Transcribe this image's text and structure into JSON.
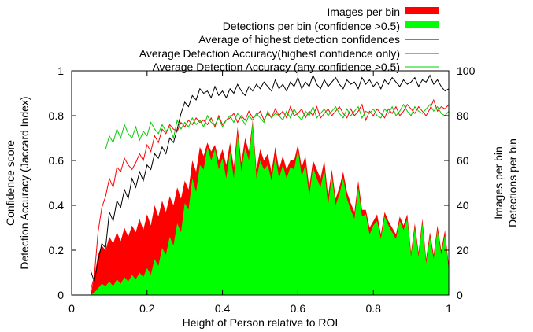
{
  "chart_data": {
    "type": "area",
    "xlabel": "Height of Person relative to ROI",
    "ylabel_left": [
      "Confidence score",
      "Detection Accuracy (Jaccard Index)"
    ],
    "ylabel_right": [
      "Images per bin",
      "Detections per bin"
    ],
    "xlim": [
      0,
      1
    ],
    "ylim_left": [
      0,
      1
    ],
    "ylim_right": [
      0,
      100
    ],
    "x_ticks": [
      "0",
      "0.2",
      "0.4",
      "0.6",
      "0.8",
      "1"
    ],
    "y_left_ticks": [
      "0",
      "0.2",
      "0.4",
      "0.6",
      "0.8",
      "1"
    ],
    "y_right_ticks": [
      "0",
      "20",
      "40",
      "60",
      "80",
      "100"
    ],
    "legend_position": "top-right",
    "series": [
      {
        "name": "Images per bin",
        "axis": "right",
        "style": "filled",
        "color": "#ff0000",
        "x": [
          0.05,
          0.06,
          0.07,
          0.08,
          0.09,
          0.1,
          0.11,
          0.12,
          0.13,
          0.14,
          0.15,
          0.16,
          0.17,
          0.18,
          0.19,
          0.2,
          0.21,
          0.22,
          0.23,
          0.24,
          0.25,
          0.26,
          0.27,
          0.28,
          0.29,
          0.3,
          0.31,
          0.32,
          0.33,
          0.34,
          0.35,
          0.36,
          0.37,
          0.38,
          0.39,
          0.4,
          0.41,
          0.42,
          0.43,
          0.44,
          0.45,
          0.46,
          0.47,
          0.48,
          0.49,
          0.5,
          0.51,
          0.52,
          0.53,
          0.54,
          0.55,
          0.56,
          0.57,
          0.58,
          0.59,
          0.6,
          0.61,
          0.62,
          0.63,
          0.64,
          0.65,
          0.66,
          0.67,
          0.68,
          0.69,
          0.7,
          0.71,
          0.72,
          0.73,
          0.74,
          0.75,
          0.76,
          0.77,
          0.78,
          0.79,
          0.8,
          0.81,
          0.82,
          0.83,
          0.84,
          0.85,
          0.86,
          0.87,
          0.88,
          0.89,
          0.9,
          0.91,
          0.92,
          0.93,
          0.94,
          0.95,
          0.96,
          0.97,
          0.98,
          0.99,
          1.0
        ],
        "y": [
          0,
          8,
          18,
          22,
          20,
          26,
          23,
          28,
          24,
          30,
          26,
          31,
          28,
          34,
          29,
          36,
          31,
          40,
          35,
          42,
          37,
          44,
          40,
          48,
          43,
          51,
          47,
          60,
          55,
          66,
          62,
          68,
          64,
          67,
          60,
          65,
          58,
          68,
          57,
          75,
          59,
          70,
          64,
          78,
          56,
          65,
          60,
          63,
          55,
          66,
          56,
          62,
          56,
          60,
          60,
          67,
          57,
          62,
          48,
          60,
          56,
          52,
          60,
          44,
          56,
          43,
          48,
          55,
          46,
          41,
          37,
          51,
          38,
          38,
          30,
          33,
          36,
          27,
          37,
          33,
          30,
          27,
          35,
          31,
          36,
          19,
          32,
          19,
          34,
          16,
          28,
          18,
          31,
          20,
          29,
          13
        ],
        "fill_opacity": 1
      },
      {
        "name": "Detections per bin (confidence >0.5)",
        "axis": "right",
        "style": "filled",
        "color": "#00ff00",
        "x": [
          0.05,
          0.06,
          0.07,
          0.08,
          0.09,
          0.1,
          0.11,
          0.12,
          0.13,
          0.14,
          0.15,
          0.16,
          0.17,
          0.18,
          0.19,
          0.2,
          0.21,
          0.22,
          0.23,
          0.24,
          0.25,
          0.26,
          0.27,
          0.28,
          0.29,
          0.3,
          0.31,
          0.32,
          0.33,
          0.34,
          0.35,
          0.36,
          0.37,
          0.38,
          0.39,
          0.4,
          0.41,
          0.42,
          0.43,
          0.44,
          0.45,
          0.46,
          0.47,
          0.48,
          0.49,
          0.5,
          0.51,
          0.52,
          0.53,
          0.54,
          0.55,
          0.56,
          0.57,
          0.58,
          0.59,
          0.6,
          0.61,
          0.62,
          0.63,
          0.64,
          0.65,
          0.66,
          0.67,
          0.68,
          0.69,
          0.7,
          0.71,
          0.72,
          0.73,
          0.74,
          0.75,
          0.76,
          0.77,
          0.78,
          0.79,
          0.8,
          0.81,
          0.82,
          0.83,
          0.84,
          0.85,
          0.86,
          0.87,
          0.88,
          0.89,
          0.9,
          0.91,
          0.92,
          0.93,
          0.94,
          0.95,
          0.96,
          0.97,
          0.98,
          0.99,
          1.0
        ],
        "y": [
          0,
          1,
          3,
          5,
          4,
          6,
          4,
          7,
          5,
          8,
          6,
          9,
          7,
          10,
          8,
          12,
          9,
          16,
          13,
          21,
          18,
          26,
          22,
          32,
          28,
          41,
          38,
          52,
          46,
          58,
          56,
          66,
          60,
          65,
          56,
          61,
          52,
          64,
          52,
          72,
          55,
          66,
          60,
          77,
          52,
          60,
          56,
          58,
          51,
          62,
          52,
          58,
          52,
          57,
          56,
          65,
          53,
          58,
          44,
          57,
          52,
          48,
          56,
          40,
          53,
          40,
          45,
          52,
          43,
          38,
          34,
          48,
          35,
          36,
          27,
          31,
          33,
          25,
          35,
          31,
          28,
          25,
          33,
          29,
          34,
          17,
          30,
          17,
          32,
          14,
          26,
          16,
          29,
          18,
          27,
          11
        ],
        "fill_opacity": 1
      },
      {
        "name": "Average of highest detection confidences",
        "axis": "left",
        "style": "line",
        "color": "#000000",
        "x": [
          0.05,
          0.06,
          0.07,
          0.08,
          0.09,
          0.1,
          0.11,
          0.12,
          0.13,
          0.14,
          0.15,
          0.16,
          0.17,
          0.18,
          0.19,
          0.2,
          0.21,
          0.22,
          0.23,
          0.24,
          0.25,
          0.26,
          0.27,
          0.28,
          0.29,
          0.3,
          0.31,
          0.32,
          0.33,
          0.34,
          0.35,
          0.36,
          0.37,
          0.38,
          0.39,
          0.4,
          0.41,
          0.42,
          0.43,
          0.44,
          0.45,
          0.46,
          0.47,
          0.48,
          0.49,
          0.5,
          0.51,
          0.52,
          0.53,
          0.54,
          0.55,
          0.56,
          0.57,
          0.58,
          0.59,
          0.6,
          0.61,
          0.62,
          0.63,
          0.64,
          0.65,
          0.66,
          0.67,
          0.68,
          0.69,
          0.7,
          0.71,
          0.72,
          0.73,
          0.74,
          0.75,
          0.76,
          0.77,
          0.78,
          0.79,
          0.8,
          0.81,
          0.82,
          0.83,
          0.84,
          0.85,
          0.86,
          0.87,
          0.88,
          0.89,
          0.9,
          0.91,
          0.92,
          0.93,
          0.94,
          0.95,
          0.96,
          0.97,
          0.98,
          0.99,
          1.0
        ],
        "y": [
          0.11,
          0.06,
          0.15,
          0.23,
          0.21,
          0.37,
          0.33,
          0.42,
          0.39,
          0.47,
          0.43,
          0.52,
          0.48,
          0.55,
          0.51,
          0.58,
          0.56,
          0.63,
          0.61,
          0.66,
          0.63,
          0.7,
          0.68,
          0.74,
          0.81,
          0.86,
          0.84,
          0.89,
          0.87,
          0.92,
          0.9,
          0.91,
          0.88,
          0.93,
          0.89,
          0.91,
          0.88,
          0.92,
          0.9,
          0.94,
          0.91,
          0.89,
          0.93,
          0.91,
          0.94,
          0.92,
          0.95,
          0.93,
          0.91,
          0.96,
          0.92,
          0.94,
          0.91,
          0.95,
          0.93,
          0.97,
          0.92,
          0.95,
          0.93,
          0.98,
          0.94,
          0.92,
          0.96,
          0.93,
          0.95,
          0.97,
          0.94,
          0.92,
          0.96,
          0.94,
          0.95,
          0.92,
          0.97,
          0.94,
          0.96,
          0.93,
          0.95,
          0.92,
          0.96,
          0.94,
          0.97,
          0.95,
          0.93,
          0.96,
          0.94,
          0.95,
          0.97,
          0.93,
          0.96,
          0.95,
          0.98,
          0.94,
          0.96,
          0.93,
          0.91,
          0.92
        ],
        "width": 1
      },
      {
        "name": "Average Detection Accuracy(highest confidence only)",
        "axis": "left",
        "style": "line",
        "color": "#ff0000",
        "x": [
          0.05,
          0.06,
          0.07,
          0.08,
          0.09,
          0.1,
          0.11,
          0.12,
          0.13,
          0.14,
          0.15,
          0.16,
          0.17,
          0.18,
          0.19,
          0.2,
          0.21,
          0.22,
          0.23,
          0.24,
          0.25,
          0.26,
          0.27,
          0.28,
          0.29,
          0.3,
          0.31,
          0.32,
          0.33,
          0.34,
          0.35,
          0.36,
          0.37,
          0.38,
          0.39,
          0.4,
          0.41,
          0.42,
          0.43,
          0.44,
          0.45,
          0.46,
          0.47,
          0.48,
          0.49,
          0.5,
          0.51,
          0.52,
          0.53,
          0.54,
          0.55,
          0.56,
          0.57,
          0.58,
          0.59,
          0.6,
          0.61,
          0.62,
          0.63,
          0.64,
          0.65,
          0.66,
          0.67,
          0.68,
          0.69,
          0.7,
          0.71,
          0.72,
          0.73,
          0.74,
          0.75,
          0.76,
          0.77,
          0.78,
          0.79,
          0.8,
          0.81,
          0.82,
          0.83,
          0.84,
          0.85,
          0.86,
          0.87,
          0.88,
          0.89,
          0.9,
          0.91,
          0.92,
          0.93,
          0.94,
          0.95,
          0.96,
          0.97,
          0.98,
          0.99,
          1.0
        ],
        "y": [
          0.02,
          0.08,
          0.28,
          0.39,
          0.44,
          0.52,
          0.48,
          0.57,
          0.55,
          0.61,
          0.58,
          0.56,
          0.59,
          0.63,
          0.6,
          0.67,
          0.64,
          0.71,
          0.68,
          0.74,
          0.72,
          0.76,
          0.74,
          0.73,
          0.77,
          0.75,
          0.78,
          0.76,
          0.79,
          0.77,
          0.78,
          0.76,
          0.79,
          0.75,
          0.8,
          0.76,
          0.78,
          0.79,
          0.81,
          0.77,
          0.8,
          0.78,
          0.82,
          0.79,
          0.8,
          0.82,
          0.78,
          0.81,
          0.79,
          0.83,
          0.8,
          0.82,
          0.79,
          0.84,
          0.8,
          0.81,
          0.83,
          0.79,
          0.82,
          0.8,
          0.84,
          0.79,
          0.81,
          0.83,
          0.8,
          0.82,
          0.84,
          0.81,
          0.79,
          0.83,
          0.8,
          0.82,
          0.85,
          0.78,
          0.82,
          0.8,
          0.83,
          0.81,
          0.79,
          0.83,
          0.81,
          0.84,
          0.8,
          0.82,
          0.85,
          0.83,
          0.81,
          0.84,
          0.82,
          0.8,
          0.83,
          0.87,
          0.82,
          0.84,
          0.83,
          0.85
        ],
        "width": 1
      },
      {
        "name": "Average Detection Accuracy (any confidence >0.5)",
        "axis": "left",
        "style": "line",
        "color": "#00cc00",
        "x": [
          0.09,
          0.1,
          0.11,
          0.12,
          0.13,
          0.14,
          0.15,
          0.16,
          0.17,
          0.18,
          0.19,
          0.2,
          0.21,
          0.22,
          0.23,
          0.24,
          0.25,
          0.26,
          0.27,
          0.28,
          0.29,
          0.3,
          0.31,
          0.32,
          0.33,
          0.34,
          0.35,
          0.36,
          0.37,
          0.38,
          0.39,
          0.4,
          0.41,
          0.42,
          0.43,
          0.44,
          0.45,
          0.46,
          0.47,
          0.48,
          0.49,
          0.5,
          0.51,
          0.52,
          0.53,
          0.54,
          0.55,
          0.56,
          0.57,
          0.58,
          0.59,
          0.6,
          0.61,
          0.62,
          0.63,
          0.64,
          0.65,
          0.66,
          0.67,
          0.68,
          0.69,
          0.7,
          0.71,
          0.72,
          0.73,
          0.74,
          0.75,
          0.76,
          0.77,
          0.78,
          0.79,
          0.8,
          0.81,
          0.82,
          0.83,
          0.84,
          0.85,
          0.86,
          0.87,
          0.88,
          0.89,
          0.9,
          0.91,
          0.92,
          0.93,
          0.94,
          0.95,
          0.96,
          0.97,
          0.98,
          0.99,
          1.0
        ],
        "y": [
          0.65,
          0.71,
          0.68,
          0.74,
          0.7,
          0.76,
          0.72,
          0.7,
          0.75,
          0.69,
          0.73,
          0.71,
          0.77,
          0.74,
          0.72,
          0.76,
          0.73,
          0.75,
          0.7,
          0.78,
          0.74,
          0.77,
          0.75,
          0.79,
          0.76,
          0.78,
          0.75,
          0.8,
          0.77,
          0.76,
          0.79,
          0.75,
          0.78,
          0.8,
          0.77,
          0.81,
          0.79,
          0.76,
          0.8,
          0.78,
          0.81,
          0.79,
          0.77,
          0.82,
          0.79,
          0.81,
          0.8,
          0.78,
          0.82,
          0.79,
          0.83,
          0.8,
          0.78,
          0.82,
          0.8,
          0.84,
          0.79,
          0.81,
          0.83,
          0.8,
          0.82,
          0.84,
          0.81,
          0.79,
          0.83,
          0.8,
          0.82,
          0.84,
          0.79,
          0.82,
          0.81,
          0.83,
          0.8,
          0.79,
          0.83,
          0.81,
          0.84,
          0.8,
          0.82,
          0.85,
          0.82,
          0.8,
          0.84,
          0.82,
          0.81,
          0.83,
          0.85,
          0.82,
          0.84,
          0.81,
          0.8,
          0.82
        ],
        "width": 1
      }
    ]
  }
}
